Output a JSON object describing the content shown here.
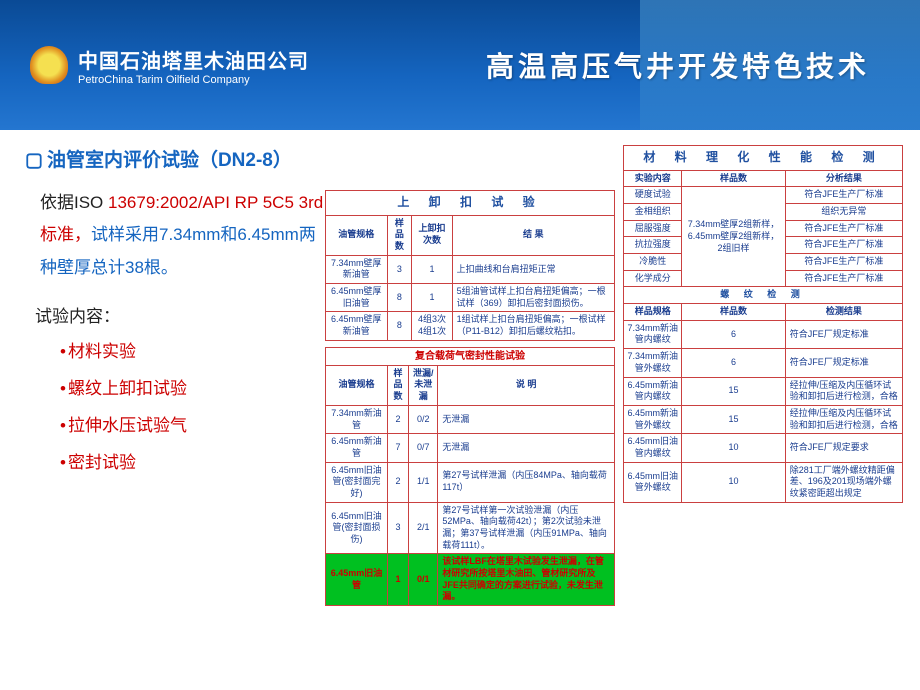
{
  "header": {
    "company_cn": "中国石油塔里木油田公司",
    "company_en": "PetroChina Tarim Oilfield Company",
    "title": "高温高压气井开发特色技术"
  },
  "section_title": "油管室内评价试验（DN2-8）",
  "desc_p1": "依据ISO ",
  "desc_red": "13679:2002/API RP 5C5 3rd标准，",
  "desc_p2": "试样采用7.34mm和6.45mm两种壁厚总计38根。",
  "subtitle": "试验内容：",
  "bullets": [
    "材料实验",
    "螺纹上卸扣试验",
    "拉伸水压试验气",
    "密封试验"
  ],
  "t1": {
    "title": "上 卸 扣 试 验",
    "cols": [
      "油管规格",
      "样品数",
      "上卸扣次数",
      "结    果"
    ],
    "rows": [
      [
        "7.34mm壁厚新油管",
        "3",
        "1",
        "上扣曲线和台肩扭矩正常"
      ],
      [
        "6.45mm壁厚旧油管",
        "8",
        "1",
        "5组油管试样上扣台肩扭矩偏高；一根试样（369）卸扣后密封面损伤。"
      ],
      [
        "6.45mm壁厚新油管",
        "8",
        "4组3次 4组1次",
        "1组试样上扣台肩扭矩偏高；一根试样（P11-B12）卸扣后螺纹粘扣。"
      ]
    ]
  },
  "t2": {
    "title": "复合载荷气密封性能试验",
    "cols": [
      "油管规格",
      "样品数",
      "泄漏/未泄漏",
      "说    明"
    ],
    "rows": [
      [
        "7.34mm新油管",
        "2",
        "0/2",
        "无泄漏"
      ],
      [
        "6.45mm新油管",
        "7",
        "0/7",
        "无泄漏"
      ],
      [
        "6.45mm旧油管(密封面完好)",
        "2",
        "1/1",
        "第27号试样泄漏（内压84MPa、轴向载荷117t）"
      ],
      [
        "6.45mm旧油管(密封面损伤)",
        "3",
        "2/1",
        "第27号试样第一次试验泄漏（内压52MPa、轴向载荷42t）；第2次试验未泄漏；第37号试样泄漏（内压91MPa、轴向载荷111t）。"
      ]
    ],
    "green_row": [
      "6.45mm旧油管",
      "1",
      "0/1",
      "该试样LBF在塔里木试验发生泄漏，在管材研究所按塔里木油田、管材研究所及JFE共同确定的方案进行试验，未发生泄漏。"
    ]
  },
  "t3": {
    "title": "材 料 理 化 性 能 检 测",
    "cols": [
      "实验内容",
      "样品数",
      "分析结果"
    ],
    "rows": [
      [
        "硬度试验",
        "",
        "符合JFE生产厂标准"
      ],
      [
        "金相组织",
        "",
        "组织无异常"
      ],
      [
        "屈服强度",
        "7.34mm壁厚2组新样，6.45mm壁厚2组新样，2组旧样",
        "符合JFE生产厂标准"
      ],
      [
        "抗拉强度",
        "",
        "符合JFE生产厂标准"
      ],
      [
        "冷脆性",
        "",
        "符合JFE生产厂标准"
      ],
      [
        "化学成分",
        "",
        "符合JFE生产厂标准"
      ]
    ]
  },
  "t4": {
    "title": "螺  纹  检  测",
    "cols": [
      "样品规格",
      "样品数",
      "检测结果"
    ],
    "rows": [
      [
        "7.34mm新油管内螺纹",
        "6",
        "符合JFE厂规定标准"
      ],
      [
        "7.34mm新油管外螺纹",
        "6",
        "符合JFE厂规定标准"
      ],
      [
        "6.45mm新油管内螺纹",
        "15",
        "经拉伸/压缩及内压循环试验和卸扣后进行检测，合格"
      ],
      [
        "6.45mm新油管外螺纹",
        "15",
        "经拉伸/压缩及内压循环试验和卸扣后进行检测，合格"
      ],
      [
        "6.45mm旧油管内螺纹",
        "10",
        "符合JFE厂规定要求"
      ],
      [
        "6.45mm旧油管外螺纹",
        "10",
        "除281工厂端外螺纹精距偏差、196及201现场端外螺纹紧密距超出规定"
      ]
    ]
  }
}
